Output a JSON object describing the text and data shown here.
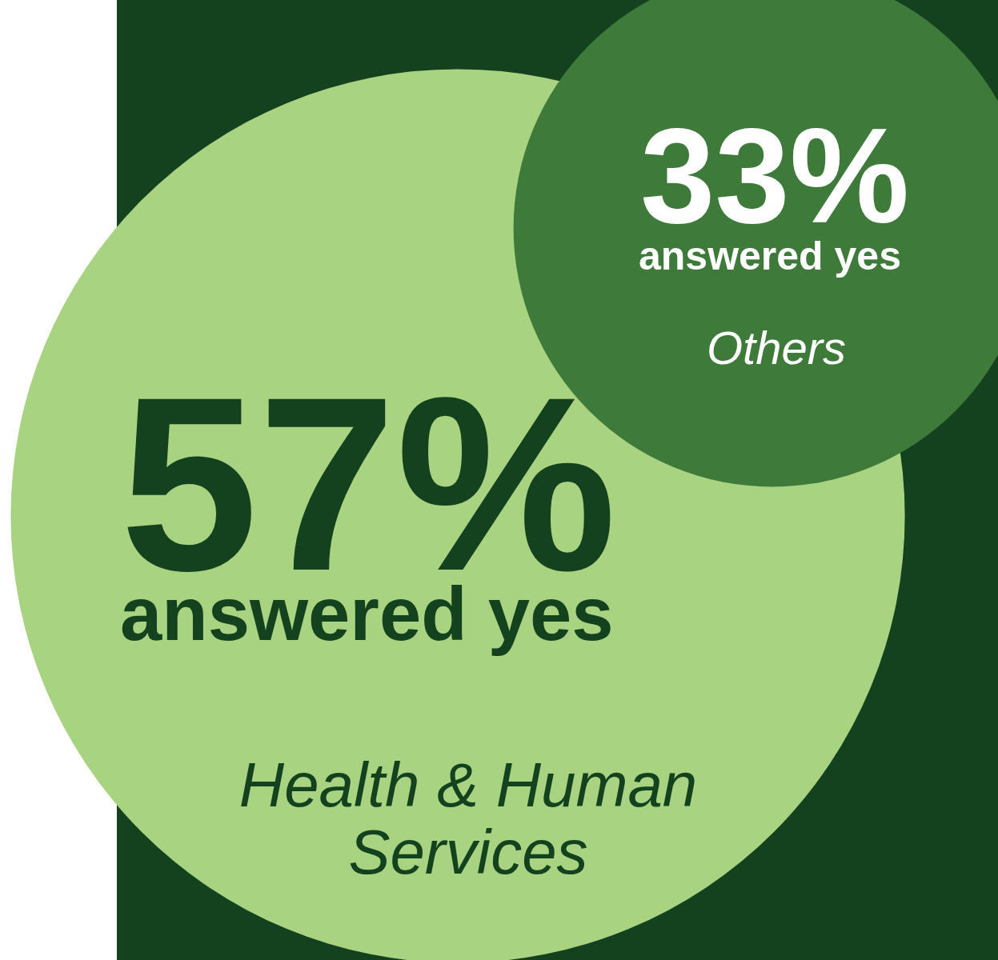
{
  "chart_data": {
    "type": "other",
    "categories": [
      "Health & Human Services",
      "Others"
    ],
    "values": [
      57,
      33
    ],
    "value_labels": [
      "57%",
      "33%"
    ],
    "annotations": [
      "answered yes",
      "answered yes"
    ],
    "colors": [
      "#a8d380",
      "#3e7b3b"
    ]
  }
}
